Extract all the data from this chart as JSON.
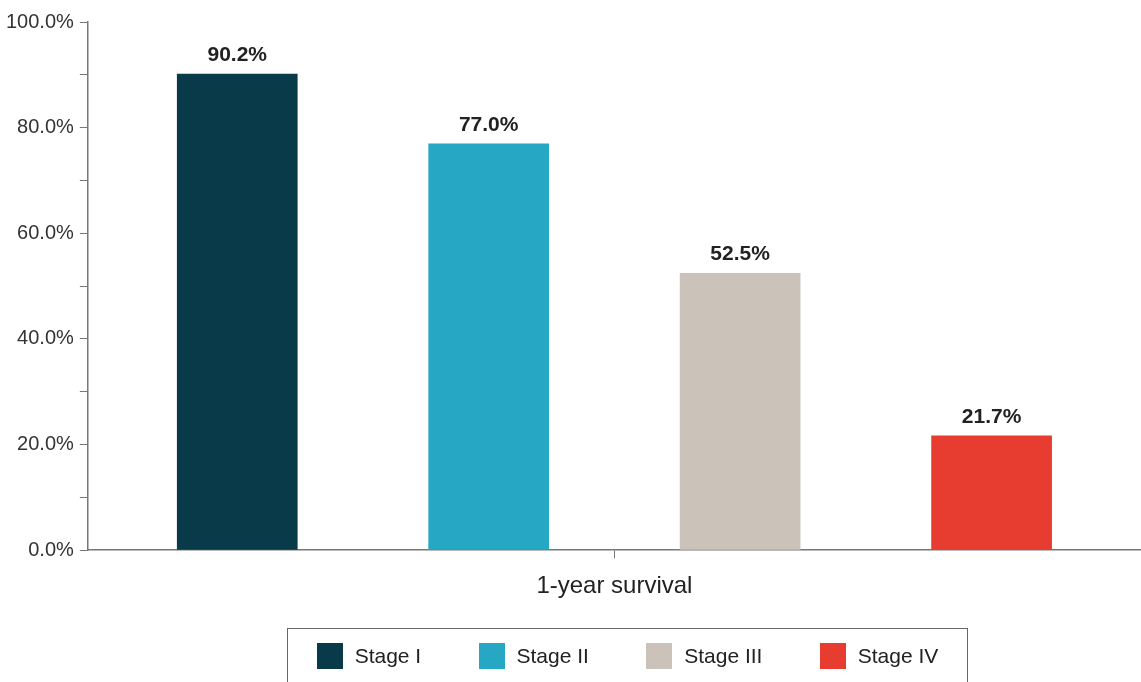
{
  "chart_data": {
    "type": "bar",
    "categories": [
      "1-year survival"
    ],
    "series": [
      {
        "name": "Stage I",
        "color": "#083a4a",
        "values": [
          90.2
        ],
        "value_labels": [
          "90.2%"
        ]
      },
      {
        "name": "Stage II",
        "color": "#26a7c3",
        "values": [
          77.0
        ],
        "value_labels": [
          "77.0%"
        ]
      },
      {
        "name": "Stage III",
        "color": "#cbc3ba",
        "values": [
          52.5
        ],
        "value_labels": [
          "52.5%"
        ]
      },
      {
        "name": "Stage IV",
        "color": "#e63d30",
        "values": [
          21.7
        ],
        "value_labels": [
          "21.7%"
        ]
      }
    ],
    "ylim": [
      0,
      100
    ],
    "yticks": [
      {
        "value": 0,
        "label": "0.0%"
      },
      {
        "value": 10,
        "label": null
      },
      {
        "value": 20,
        "label": "20.0%"
      },
      {
        "value": 30,
        "label": null
      },
      {
        "value": 40,
        "label": "40.0%"
      },
      {
        "value": 50,
        "label": null
      },
      {
        "value": 60,
        "label": "60.0%"
      },
      {
        "value": 70,
        "label": null
      },
      {
        "value": 80,
        "label": "80.0%"
      },
      {
        "value": 90,
        "label": null
      },
      {
        "value": 100,
        "label": "100.0%"
      }
    ],
    "grid": false,
    "legend": "bottom"
  }
}
